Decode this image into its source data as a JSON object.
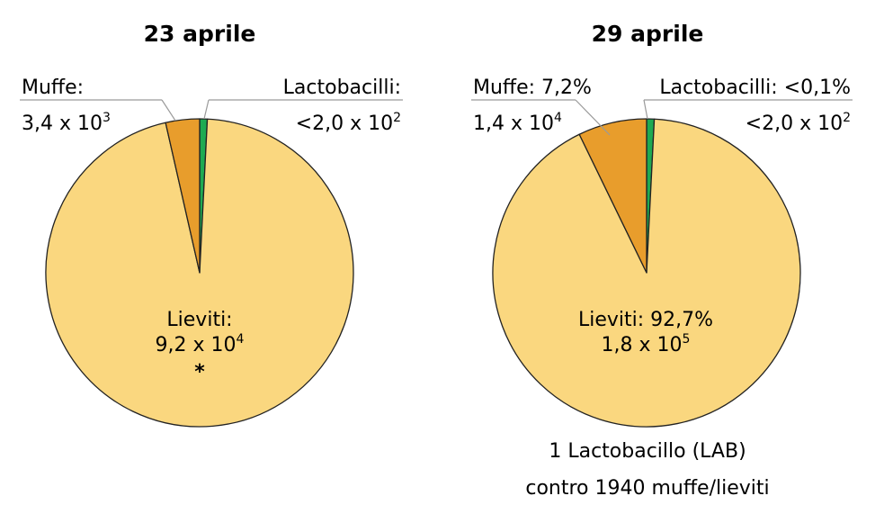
{
  "colors": {
    "lieviti": "#fad77f",
    "muffe": "#e89d2c",
    "lactobacilli": "#1faa52",
    "leader": "#9a9a9a",
    "outline": "#222222"
  },
  "chart_data": [
    {
      "type": "pie",
      "title": "23 aprile",
      "slices": [
        {
          "name": "Lieviti",
          "value": 92000,
          "label": "Lieviti:",
          "value_label": {
            "base": "9,2 x 10",
            "exp": "4"
          },
          "note": "*"
        },
        {
          "name": "Muffe",
          "value": 3400,
          "label": "Muffe:",
          "value_label": {
            "base": "3,4 x 10",
            "exp": "3"
          }
        },
        {
          "name": "Lactobacilli",
          "value": 200,
          "label": "Lactobacilli:",
          "value_label": {
            "base": "<2,0 x 10",
            "exp": "2"
          }
        }
      ]
    },
    {
      "type": "pie",
      "title": "29 aprile",
      "slices": [
        {
          "name": "Lieviti",
          "value": 180000,
          "label": "Lieviti: 92,7%",
          "value_label": {
            "base": "1,8 x 10",
            "exp": "5"
          }
        },
        {
          "name": "Muffe",
          "value": 14000,
          "label": "Muffe: 7,2%",
          "value_label": {
            "base": "1,4 x 10",
            "exp": "4"
          }
        },
        {
          "name": "Lactobacilli",
          "value": 200,
          "label": "Lactobacilli: <0,1%",
          "value_label": {
            "base": "<2,0 x 10",
            "exp": "2"
          }
        }
      ],
      "caption": [
        "1 Lactobacillo (LAB)",
        "contro 1940 muffe/lieviti"
      ]
    }
  ]
}
